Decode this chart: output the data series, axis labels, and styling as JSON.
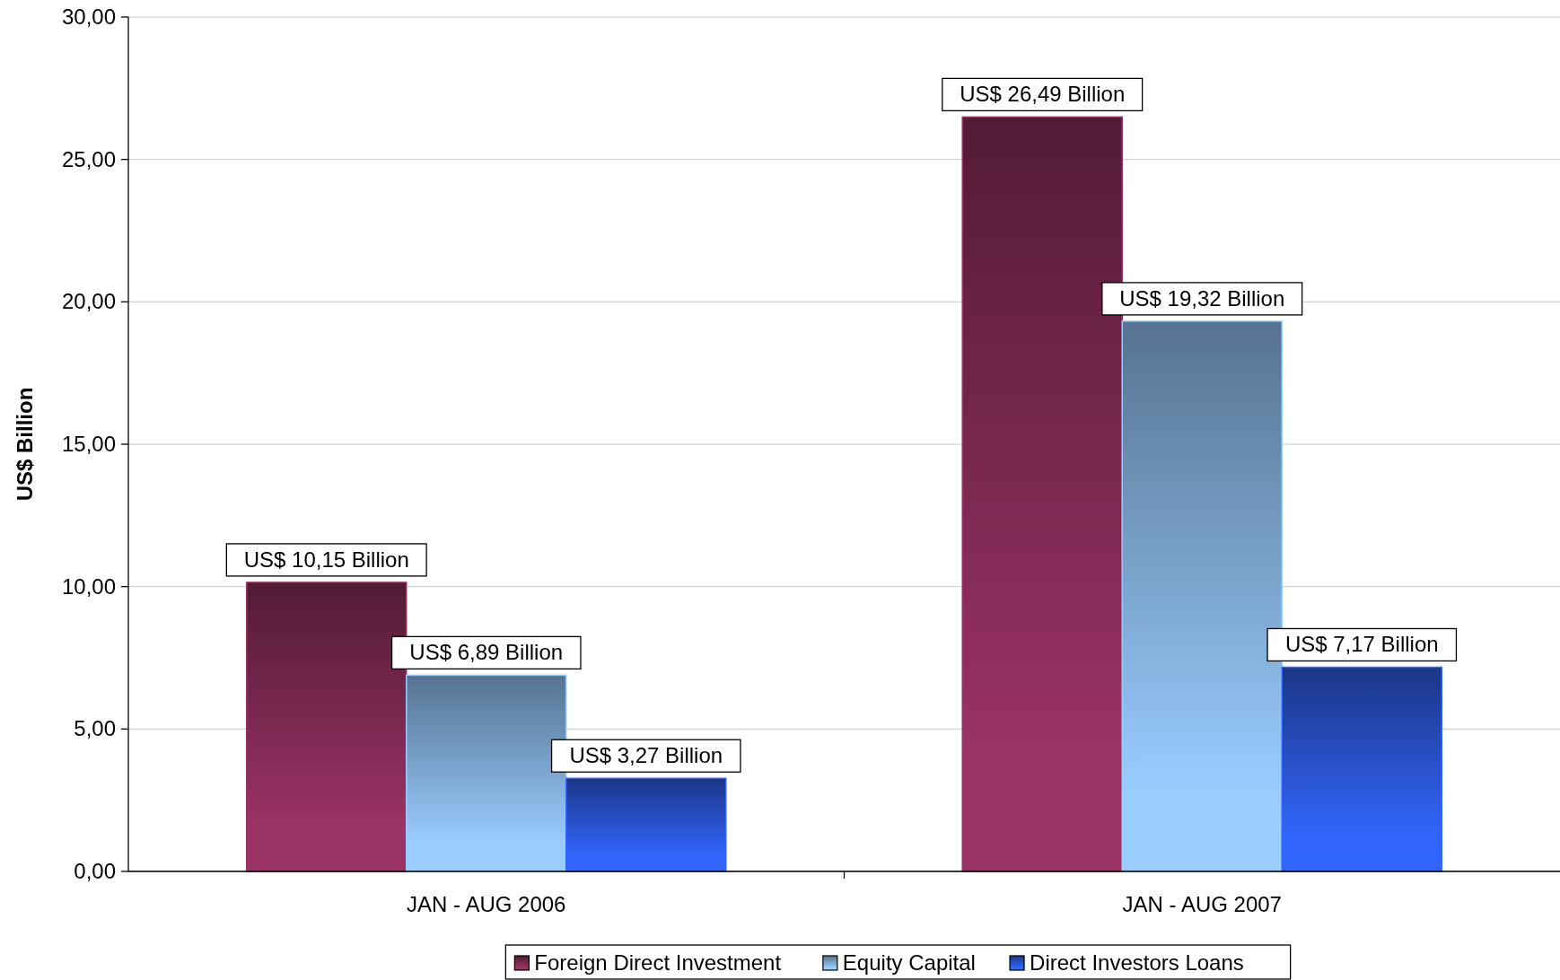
{
  "chart_data": {
    "type": "bar",
    "ylabel": "US$ Billion",
    "categories": [
      "JAN - AUG 2006",
      "JAN - AUG 2007"
    ],
    "series": [
      {
        "name": "Foreign Direct Investment",
        "color": "#9b3366",
        "values": [
          10.15,
          26.49
        ],
        "value_labels": [
          "US$ 10,15 Billion",
          "US$ 26,49 Billion"
        ]
      },
      {
        "name": "Equity Capital",
        "color": "#99ccff",
        "values": [
          6.89,
          19.32
        ],
        "value_labels": [
          "US$ 6,89 Billion",
          "US$ 19,32 Billion"
        ]
      },
      {
        "name": "Direct Investors Loans",
        "color": "#3366ff",
        "values": [
          3.27,
          7.17
        ],
        "value_labels": [
          "US$ 3,27 Billion",
          "US$ 7,17 Billion"
        ]
      }
    ],
    "ylim": [
      0,
      30
    ],
    "yticks": [
      {
        "value": 0,
        "label": "0,00"
      },
      {
        "value": 5,
        "label": "5,00"
      },
      {
        "value": 10,
        "label": "10,00"
      },
      {
        "value": 15,
        "label": "15,00"
      },
      {
        "value": 20,
        "label": "20,00"
      },
      {
        "value": 25,
        "label": "25,00"
      },
      {
        "value": 30,
        "label": "30,00"
      }
    ],
    "grid": "y",
    "legend": "bottom"
  }
}
